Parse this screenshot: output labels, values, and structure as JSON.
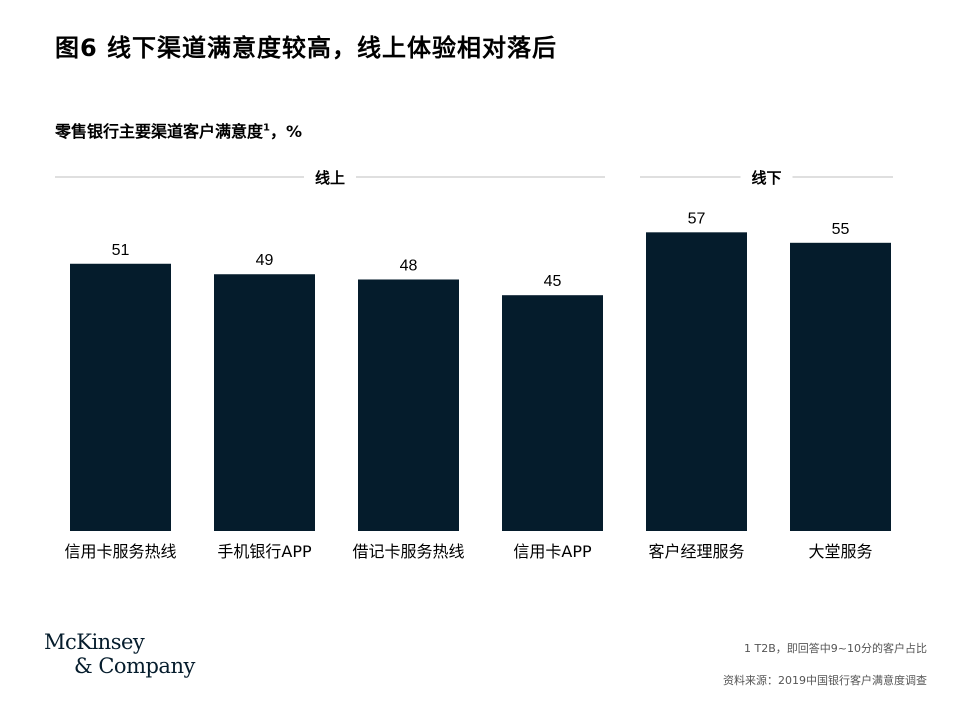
{
  "title": "图6 线下渠道满意度较高，线上体验相对落后",
  "subtitle": "零售银行主要渠道客户满意度",
  "subtitle_sup": "1",
  "subtitle_suffix": "，%",
  "footnote1": "1 T2B，即回答中9~10分的客户占比",
  "footnote2": "资料来源：2019中国银行客户满意度调查",
  "logo": {
    "line1": "McKinsey",
    "line2": "& Company"
  },
  "colors": {
    "bar": "#051c2c",
    "divider": "#bfbfbf"
  },
  "chart_data": {
    "type": "bar",
    "categories": [
      "信用卡服务热线",
      "手机银行APP",
      "借记卡服务热线",
      "信用卡APP",
      "客户经理服务",
      "大堂服务"
    ],
    "values": [
      51,
      49,
      48,
      45,
      57,
      55
    ],
    "groups": [
      {
        "label": "线上",
        "categories": [
          "信用卡服务热线",
          "手机银行APP",
          "借记卡服务热线",
          "信用卡APP"
        ]
      },
      {
        "label": "线下",
        "categories": [
          "客户经理服务",
          "大堂服务"
        ]
      }
    ],
    "ylim": [
      0,
      60
    ],
    "grid": false,
    "data_labels": true
  }
}
